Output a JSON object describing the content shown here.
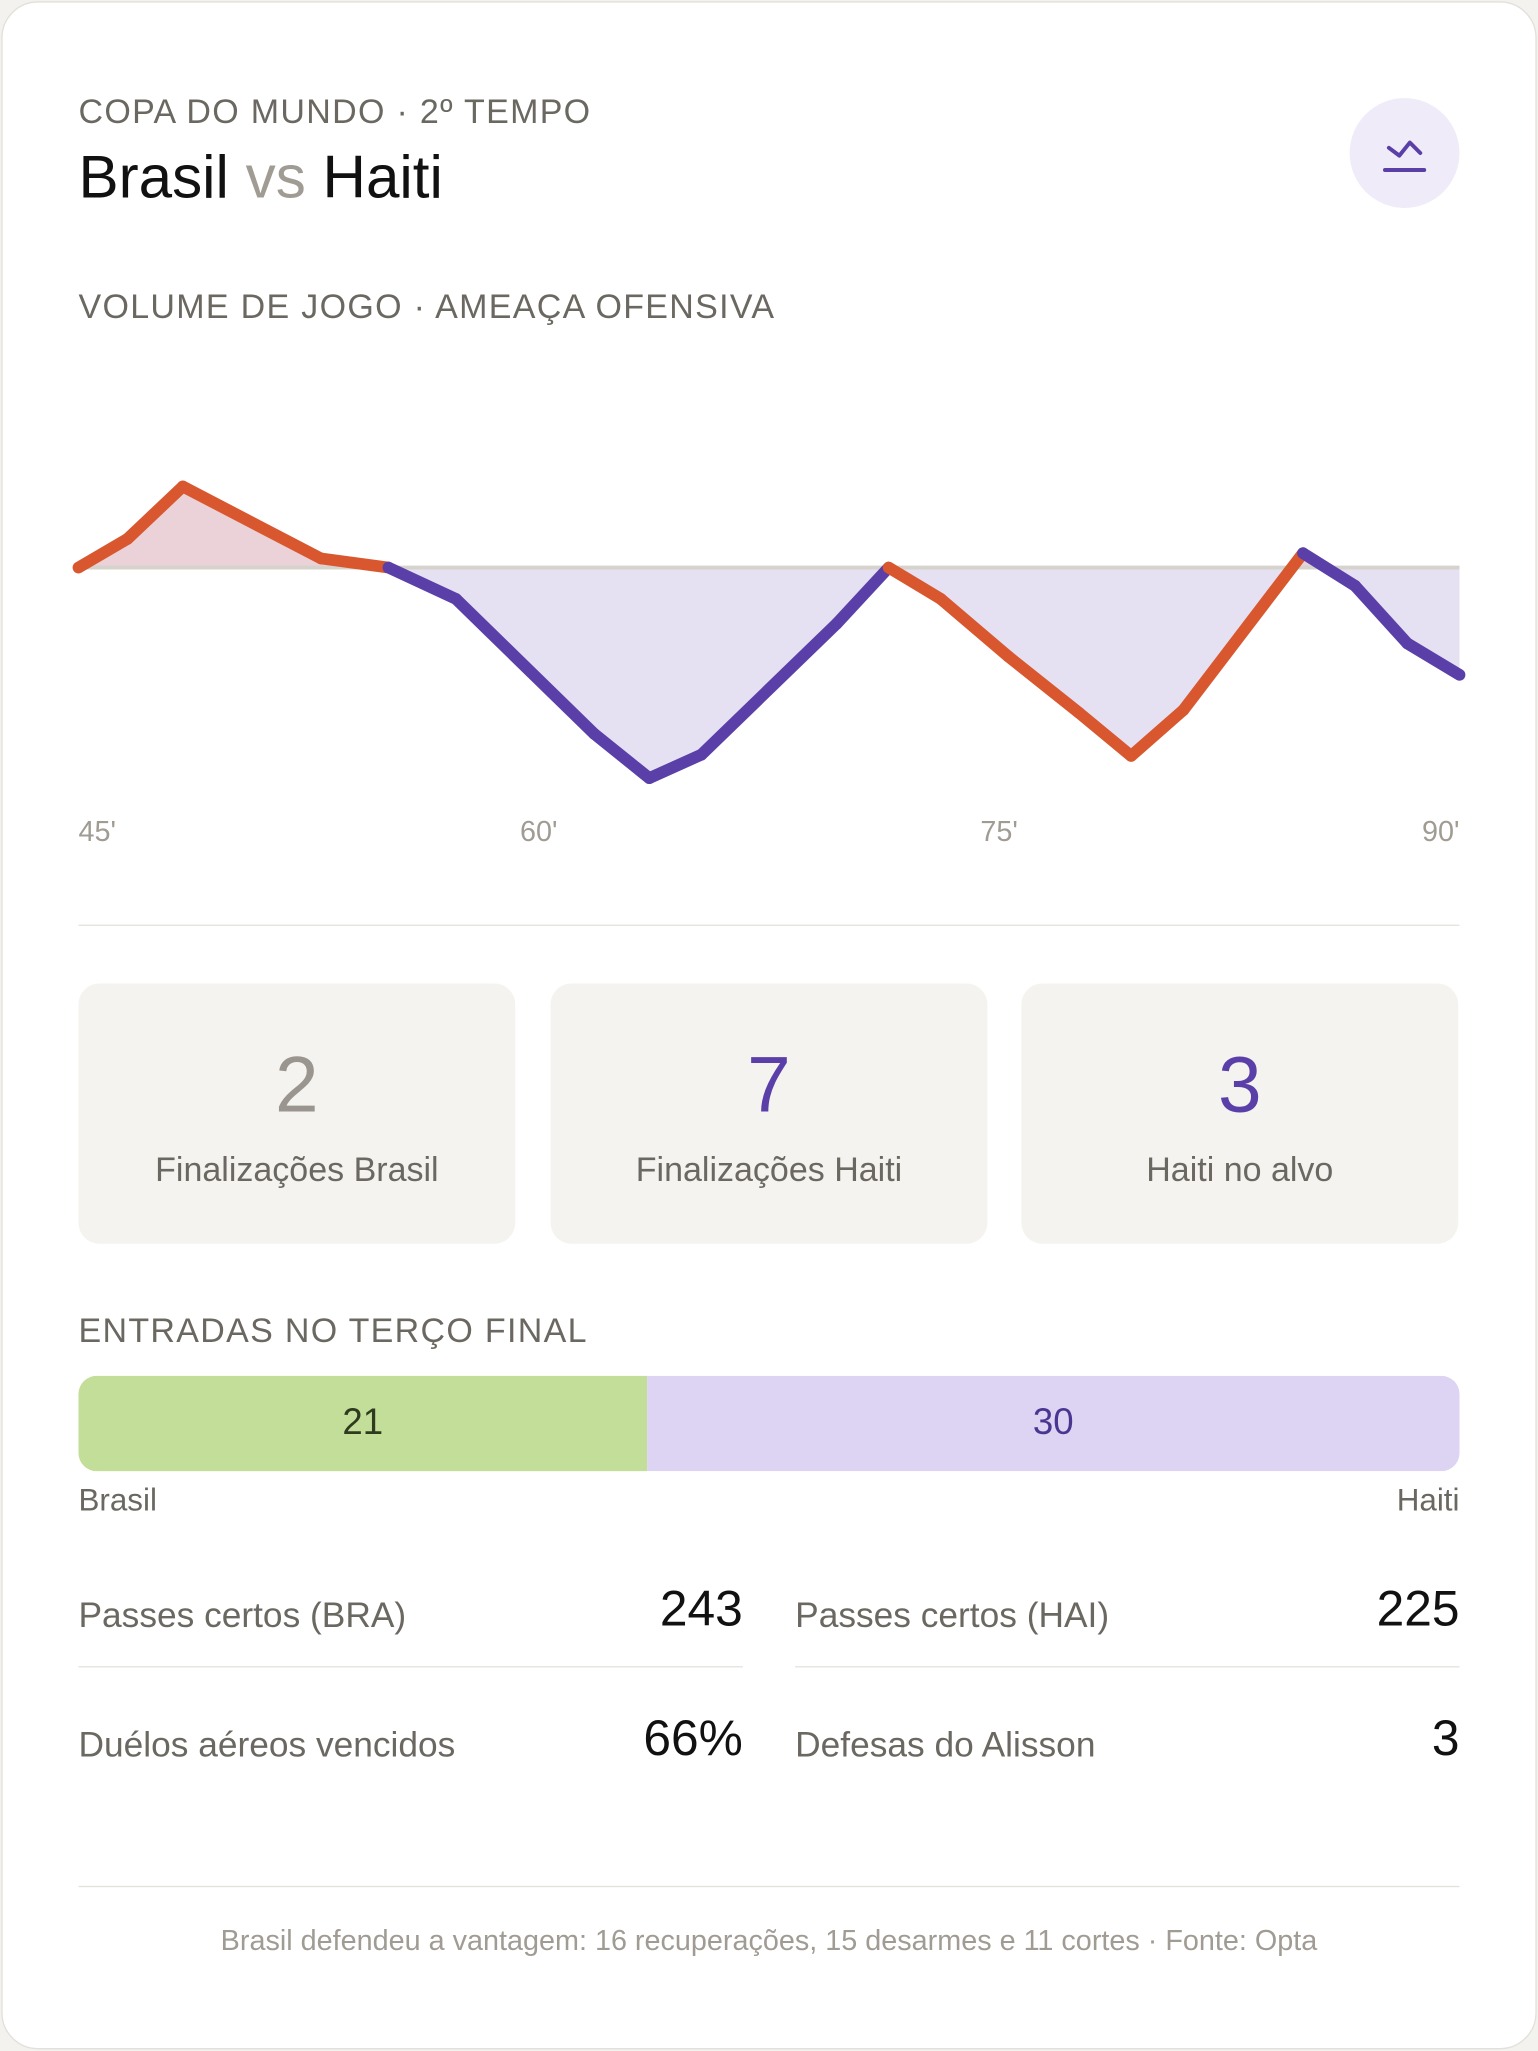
{
  "header": {
    "kicker": "COPA DO MUNDO · 2º TEMPO",
    "home": "Brasil",
    "vs": "vs",
    "away": "Haiti"
  },
  "chart_data": {
    "type": "line",
    "title": "VOLUME DE JOGO · AMEAÇA OFENSIVA",
    "x": [
      45,
      46.6,
      48.4,
      52.9,
      55.1,
      57.3,
      61.8,
      63.6,
      65.3,
      69.7,
      71.4,
      73.1,
      75.3,
      77.6,
      79.3,
      81,
      84.9,
      86.6,
      88.3,
      90
    ],
    "values": [
      0,
      22,
      62,
      7,
      0,
      -24,
      -127,
      -161,
      -143,
      -43,
      0,
      -24,
      -68,
      -111,
      -144,
      -109,
      11,
      -14,
      -58,
      -82
    ],
    "segment_colors": [
      "#d9572f",
      "#d9572f",
      "#d9572f",
      "#d9572f",
      "#5b3fa8",
      "#5b3fa8",
      "#5b3fa8",
      "#5b3fa8",
      "#5b3fa8",
      "#5b3fa8",
      "#d9572f",
      "#d9572f",
      "#d9572f",
      "#d9572f",
      "#d9572f",
      "#d9572f",
      "#5b3fa8",
      "#5b3fa8",
      "#5b3fa8"
    ],
    "positive_fill": "#ead2d8",
    "negative_fill": "#e5e0f2",
    "xlim": [
      45,
      90
    ],
    "xticks": [
      {
        "value": 45,
        "label": "45'"
      },
      {
        "value": 60,
        "label": "60'"
      },
      {
        "value": 75,
        "label": "75'"
      },
      {
        "value": 90,
        "label": "90'"
      }
    ],
    "ylim": [
      -180,
      180
    ]
  },
  "stats_boxes": [
    {
      "value": 2,
      "label": "Finalizações Brasil",
      "color": "#9a968f"
    },
    {
      "value": 7,
      "label": "Finalizações Haiti",
      "color": "#5b3fa8"
    },
    {
      "value": 3,
      "label": "Haiti no alvo",
      "color": "#5b3fa8"
    }
  ],
  "final_third": {
    "title": "ENTRADAS NO TERÇO FINAL",
    "values": [
      21,
      30
    ],
    "labels": [
      "Brasil",
      "Haiti"
    ],
    "colors": [
      "#c2de98",
      "#ddd3f3"
    ],
    "text_colors": [
      "#2e3b1f",
      "#4a3590"
    ]
  },
  "rows": [
    {
      "label": "Passes certos (BRA)",
      "value": 243
    },
    {
      "label": "Passes certos (HAI)",
      "value": 225
    },
    {
      "label": "Duélos aéreos vencidos",
      "value": "66%"
    },
    {
      "label": "Defesas do Alisson",
      "value": 3
    }
  ],
  "footer": "Brasil defendeu a vantagem: 16 recuperações, 15 desarmes e 11 cortes · Fonte: Opta"
}
